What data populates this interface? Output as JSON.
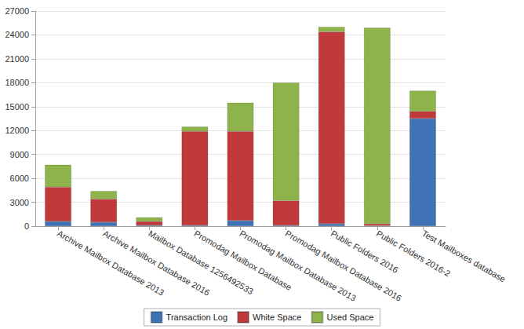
{
  "chart_data": {
    "type": "bar",
    "stacked": true,
    "grid": true,
    "legend": "bottom",
    "categories": [
      "Archive Mailbox Database 2013",
      "Archive Mailbox Database 2016",
      "Mailbox Database 1256492533",
      "Promodag Mailbox Database",
      "Promodag Mailbox Database 2013",
      "Promodag Mailbox Database 2016",
      "Public Folders 2016",
      "Public Folders 2016-2",
      "Test Mailboxes database"
    ],
    "series": [
      {
        "name": "Transaction Log",
        "color": "#3f72b5",
        "values": [
          600,
          500,
          100,
          100,
          700,
          100,
          300,
          50,
          13500
        ]
      },
      {
        "name": "White Space",
        "color": "#c0393b",
        "values": [
          4300,
          2900,
          500,
          11800,
          11200,
          3100,
          24100,
          250,
          900
        ]
      },
      {
        "name": "Used Space",
        "color": "#8db34a",
        "values": [
          2800,
          1000,
          500,
          600,
          3600,
          14800,
          600,
          24600,
          2600
        ]
      }
    ],
    "ylim": [
      0,
      27000
    ],
    "yticks": [
      0,
      3000,
      6000,
      9000,
      12000,
      15000,
      18000,
      21000,
      24000,
      27000
    ]
  }
}
